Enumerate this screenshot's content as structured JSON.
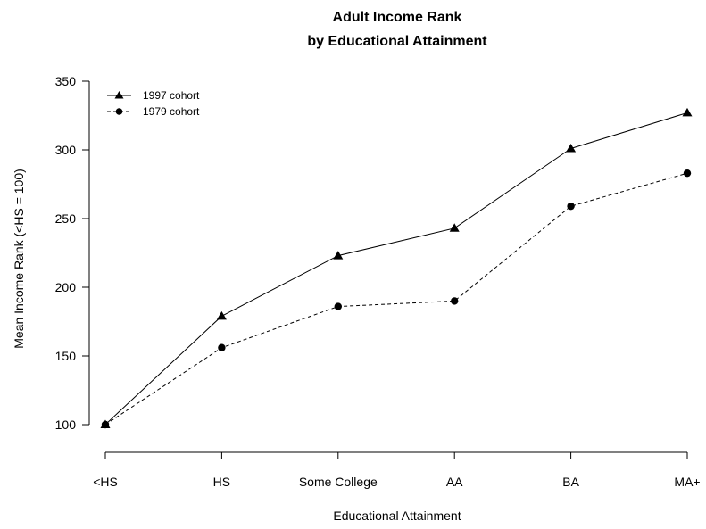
{
  "chart_data": {
    "type": "line",
    "title": [
      "Adult Income Rank",
      "by Educational Attainment"
    ],
    "xlabel": "Educational Attainment",
    "ylabel": "Mean Income Rank (<HS = 100)",
    "categories": [
      "<HS",
      "HS",
      "Some College",
      "AA",
      "BA",
      "MA+"
    ],
    "ylim": [
      90,
      350
    ],
    "yticks": [
      100,
      150,
      200,
      250,
      300,
      350
    ],
    "grid": false,
    "legend_position": "top-left",
    "series": [
      {
        "name": "1997 cohort",
        "values": [
          100,
          179,
          223,
          243,
          301,
          327
        ],
        "marker": "triangle",
        "line": "solid",
        "color": "#000000"
      },
      {
        "name": "1979 cohort",
        "values": [
          100,
          156,
          186,
          190,
          259,
          283
        ],
        "marker": "circle",
        "line": "dashed",
        "color": "#000000"
      }
    ]
  }
}
